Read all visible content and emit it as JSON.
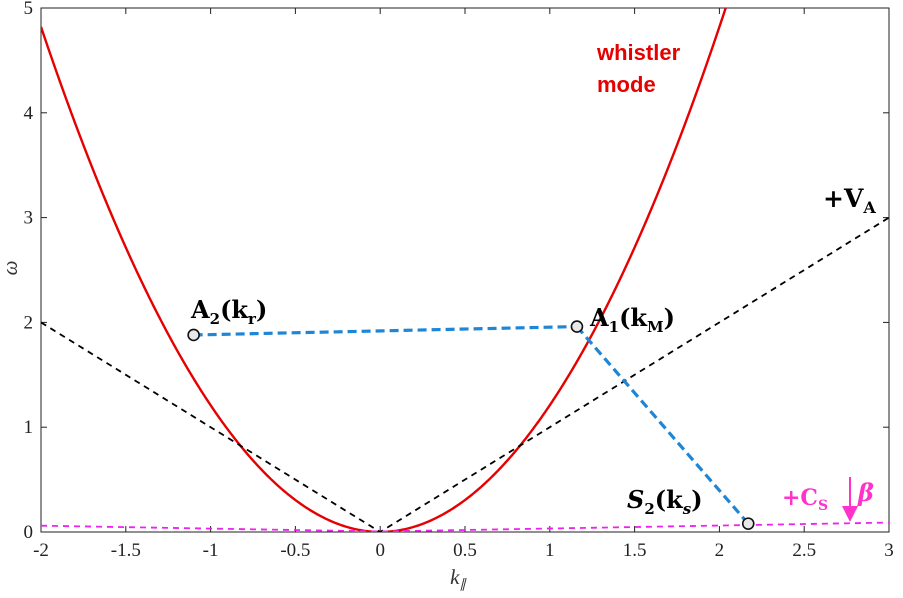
{
  "chart_data": {
    "type": "line",
    "xlabel": "k",
    "xlabel_sub": "∥",
    "ylabel": "ω",
    "xlim": [
      -2,
      3
    ],
    "ylim": [
      0,
      5
    ],
    "x_ticks": [
      -2,
      -1.5,
      -1,
      -0.5,
      0,
      0.5,
      1,
      1.5,
      2,
      2.5,
      3
    ],
    "x_tick_labels": [
      "-2",
      "-1.5",
      "-1",
      "-0.5",
      "0",
      "0.5",
      "1",
      "1.5",
      "2",
      "2.5",
      "3"
    ],
    "y_ticks": [
      0,
      1,
      2,
      3,
      4,
      5
    ],
    "y_tick_labels": [
      "0",
      "1",
      "2",
      "3",
      "4",
      "5"
    ],
    "grid": false,
    "series": [
      {
        "name": "whistler mode",
        "color": "#e60000",
        "style": "solid",
        "x": [
          -2,
          -1.75,
          -1.5,
          -1.25,
          -1.1,
          -1,
          -0.75,
          -0.5,
          -0.25,
          0,
          0.25,
          0.5,
          0.75,
          1,
          1.16,
          1.25,
          1.5,
          1.75,
          2.0
        ],
        "y": [
          4.83,
          3.88,
          3.0,
          2.22,
          1.88,
          1.61,
          1.06,
          0.61,
          0.27,
          0,
          0.27,
          0.61,
          1.06,
          1.61,
          1.96,
          2.22,
          3.0,
          3.88,
          4.83
        ]
      },
      {
        "name": "+V_A",
        "color": "#000000",
        "style": "dashed",
        "x": [
          -2,
          0,
          3
        ],
        "y": [
          2,
          0,
          3
        ]
      },
      {
        "name": "+C_S",
        "color": "#ee22ee",
        "style": "dashed",
        "x": [
          -2,
          0,
          3
        ],
        "y": [
          0.06,
          0.005,
          0.09
        ]
      },
      {
        "name": "",
        "color": "#1f86d6",
        "style": "dashed",
        "x": [
          -1.1,
          1.16
        ],
        "y": [
          1.88,
          1.96
        ]
      },
      {
        "name": "",
        "color": "#1f86d6",
        "style": "dashed",
        "x": [
          1.16,
          2.17
        ],
        "y": [
          1.96,
          0.08
        ]
      }
    ],
    "points": [
      {
        "x": -1.1,
        "y": 1.88,
        "label": "A2"
      },
      {
        "x": 1.16,
        "y": 1.96,
        "label": "A1"
      },
      {
        "x": 2.17,
        "y": 0.08,
        "label": "S2"
      }
    ],
    "annotations": {
      "whistler_line1": "whistler",
      "whistler_line2": "mode",
      "va_main": "+V",
      "va_sub": "A",
      "cs_main": "+C",
      "cs_sub": "S",
      "beta": "β",
      "a2_main": "A",
      "a2_sub": "2",
      "a2_arg": "r",
      "a1_main": "A",
      "a1_sub": "1",
      "a1_arg": "M",
      "s2_main": "S",
      "s2_sub": "2",
      "s2_arg": "s"
    }
  }
}
